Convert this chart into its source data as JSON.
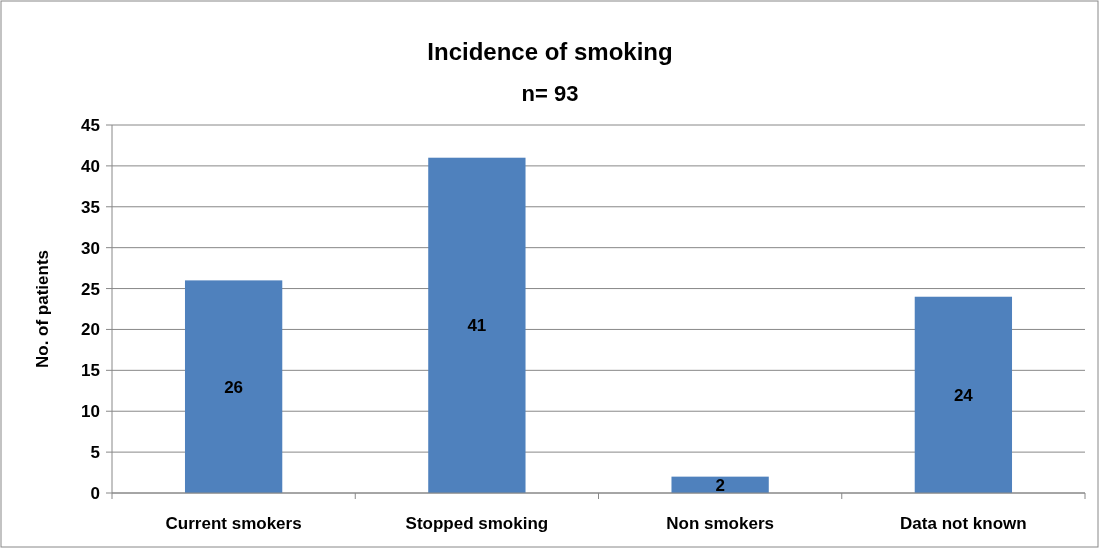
{
  "chart_data": {
    "type": "bar",
    "title": "Incidence of smoking",
    "subtitle": "n= 93",
    "ylabel": "No. of patients",
    "categories": [
      "Current smokers",
      "Stopped smoking",
      "Non smokers",
      "Data not known"
    ],
    "values": [
      26,
      41,
      2,
      24
    ],
    "color": "#4f81bd",
    "ylim": [
      0,
      45
    ],
    "yticks": [
      0,
      5,
      10,
      15,
      20,
      25,
      30,
      35,
      40,
      45
    ],
    "grid": "y",
    "data_labels": true
  }
}
